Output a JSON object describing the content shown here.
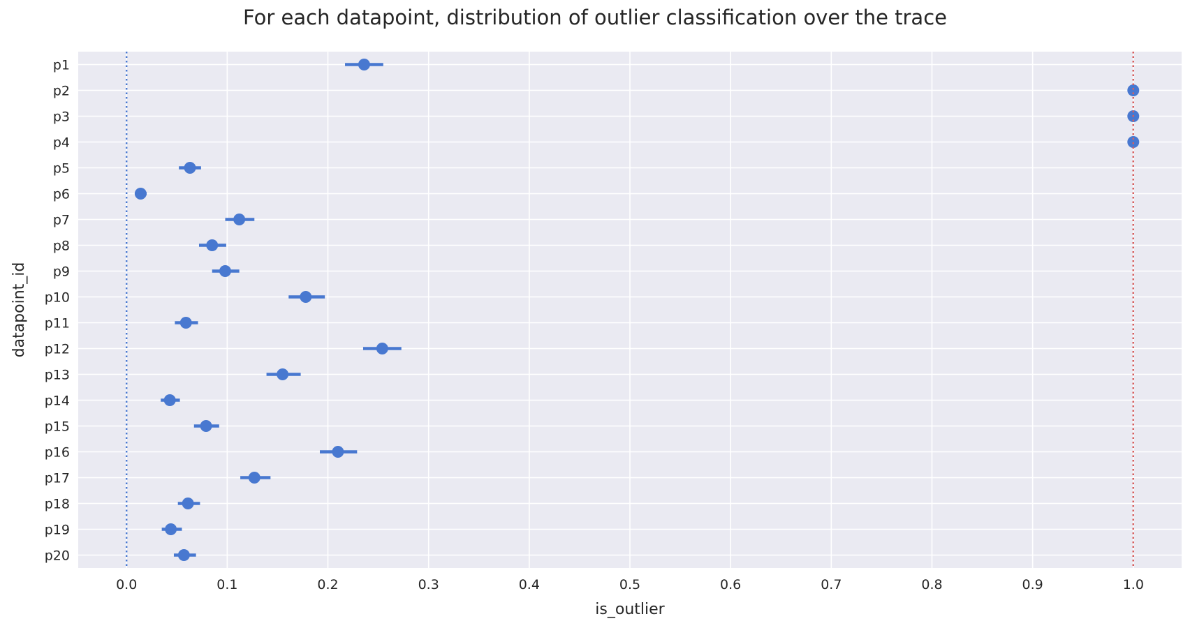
{
  "chart_data": {
    "type": "point",
    "title": "For each datapoint, distribution of outlier classification over the trace",
    "xlabel": "is_outlier",
    "ylabel": "datapoint_id",
    "xlim": [
      -0.048,
      1.048
    ],
    "xticks": [
      0.0,
      0.1,
      0.2,
      0.3,
      0.4,
      0.5,
      0.6,
      0.7,
      0.8,
      0.9,
      1.0
    ],
    "xtick_labels": [
      "0.0",
      "0.1",
      "0.2",
      "0.3",
      "0.4",
      "0.5",
      "0.6",
      "0.7",
      "0.8",
      "0.9",
      "1.0"
    ],
    "grid": true,
    "point_color": "#4878d0",
    "reference_lines": [
      {
        "x": 0.0,
        "color": "#4878d0",
        "style": "dotted"
      },
      {
        "x": 1.0,
        "color": "#d65f5f",
        "style": "dotted"
      }
    ],
    "categories": [
      "p1",
      "p2",
      "p3",
      "p4",
      "p5",
      "p6",
      "p7",
      "p8",
      "p9",
      "p10",
      "p11",
      "p12",
      "p13",
      "p14",
      "p15",
      "p16",
      "p17",
      "p18",
      "p19",
      "p20"
    ],
    "values": [
      0.236,
      1.0,
      1.0,
      1.0,
      0.063,
      0.014,
      0.112,
      0.085,
      0.098,
      0.178,
      0.059,
      0.254,
      0.155,
      0.043,
      0.079,
      0.21,
      0.127,
      0.061,
      0.044,
      0.057
    ],
    "ci_low": [
      0.217,
      1.0,
      1.0,
      1.0,
      0.052,
      0.01,
      0.098,
      0.072,
      0.085,
      0.161,
      0.048,
      0.235,
      0.139,
      0.034,
      0.067,
      0.192,
      0.113,
      0.051,
      0.035,
      0.047
    ],
    "ci_high": [
      0.255,
      1.0,
      1.0,
      1.0,
      0.074,
      0.02,
      0.127,
      0.099,
      0.112,
      0.197,
      0.071,
      0.273,
      0.173,
      0.053,
      0.092,
      0.229,
      0.143,
      0.073,
      0.055,
      0.069
    ]
  }
}
